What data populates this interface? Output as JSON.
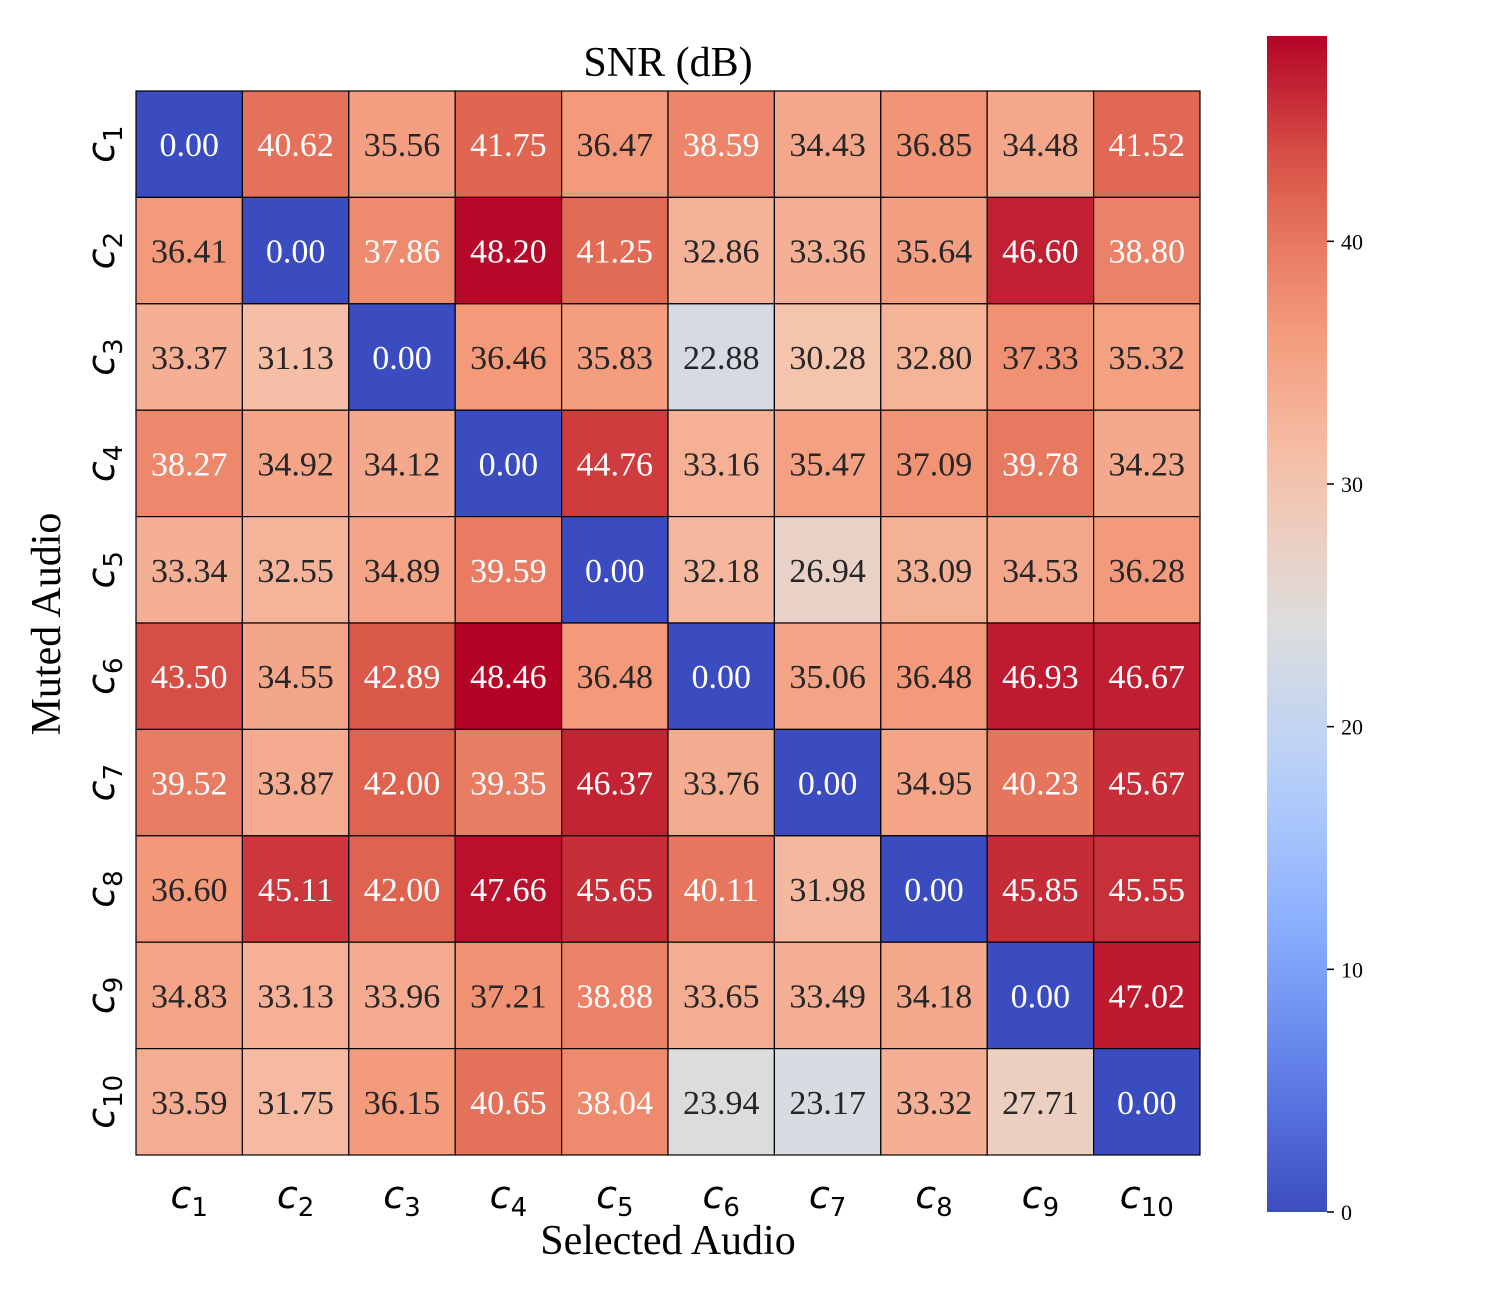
{
  "chart_data": {
    "type": "heatmap",
    "title": "SNR (dB)",
    "xlabel": "Selected Audio",
    "ylabel": "Muted Audio",
    "x_categories": [
      {
        "base": "c",
        "sub": "1"
      },
      {
        "base": "c",
        "sub": "2"
      },
      {
        "base": "c",
        "sub": "3"
      },
      {
        "base": "c",
        "sub": "4"
      },
      {
        "base": "c",
        "sub": "5"
      },
      {
        "base": "c",
        "sub": "6"
      },
      {
        "base": "c",
        "sub": "7"
      },
      {
        "base": "c",
        "sub": "8"
      },
      {
        "base": "c",
        "sub": "9"
      },
      {
        "base": "c",
        "sub": "10"
      }
    ],
    "y_categories": [
      {
        "base": "c",
        "sub": "1"
      },
      {
        "base": "c",
        "sub": "2"
      },
      {
        "base": "c",
        "sub": "3"
      },
      {
        "base": "c",
        "sub": "4"
      },
      {
        "base": "c",
        "sub": "5"
      },
      {
        "base": "c",
        "sub": "6"
      },
      {
        "base": "c",
        "sub": "7"
      },
      {
        "base": "c",
        "sub": "8"
      },
      {
        "base": "c",
        "sub": "9"
      },
      {
        "base": "c",
        "sub": "10"
      }
    ],
    "values": [
      [
        0.0,
        40.62,
        35.56,
        41.75,
        36.47,
        38.59,
        34.43,
        36.85,
        34.48,
        41.52
      ],
      [
        36.41,
        0.0,
        37.86,
        48.2,
        41.25,
        32.86,
        33.36,
        35.64,
        46.6,
        38.8
      ],
      [
        33.37,
        31.13,
        0.0,
        36.46,
        35.83,
        22.88,
        30.28,
        32.8,
        37.33,
        35.32
      ],
      [
        38.27,
        34.92,
        34.12,
        0.0,
        44.76,
        33.16,
        35.47,
        37.09,
        39.78,
        34.23
      ],
      [
        33.34,
        32.55,
        34.89,
        39.59,
        0.0,
        32.18,
        26.94,
        33.09,
        34.53,
        36.28
      ],
      [
        43.5,
        34.55,
        42.89,
        48.46,
        36.48,
        0.0,
        35.06,
        36.48,
        46.93,
        46.67
      ],
      [
        39.52,
        33.87,
        42.0,
        39.35,
        46.37,
        33.76,
        0.0,
        34.95,
        40.23,
        45.67
      ],
      [
        36.6,
        45.11,
        42.0,
        47.66,
        45.65,
        40.11,
        31.98,
        0.0,
        45.85,
        45.55
      ],
      [
        34.83,
        33.13,
        33.96,
        37.21,
        38.88,
        33.65,
        33.49,
        34.18,
        0.0,
        47.02
      ],
      [
        33.59,
        31.75,
        36.15,
        40.65,
        38.04,
        23.94,
        23.17,
        33.32,
        27.71,
        0.0
      ]
    ],
    "colormap": "coolwarm",
    "vmin": 0,
    "vmax": 48.46,
    "colorbar_ticks": [
      0,
      10,
      20,
      30,
      40
    ]
  }
}
